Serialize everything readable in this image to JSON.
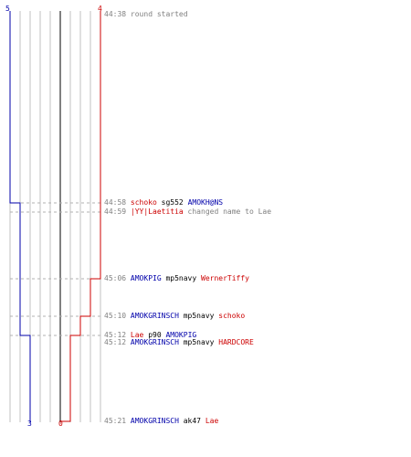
{
  "colors": {
    "blue": "#0000aa",
    "red": "#cc0000",
    "grid": "#c0c0c0",
    "center": "#808080",
    "time": "#808080",
    "dash": "#b0b0b0"
  },
  "scores": {
    "blue_start": "5",
    "red_start": "4",
    "blue_end": "3",
    "red_end": "0"
  },
  "events": [
    {
      "time": "44:38",
      "parts": [
        {
          "text": "round started",
          "color": "gray"
        }
      ]
    },
    {
      "time": "44:58",
      "parts": [
        {
          "text": "schoko",
          "color": "red"
        },
        {
          "text": "sg552",
          "color": "black"
        },
        {
          "text": "AMOKH@NS",
          "color": "blue"
        }
      ]
    },
    {
      "time": "44:59",
      "parts": [
        {
          "text": "|YY|Laetitia",
          "color": "red"
        },
        {
          "text": "changed name to Lae",
          "color": "gray"
        }
      ]
    },
    {
      "time": "45:06",
      "parts": [
        {
          "text": "AMOKPIG",
          "color": "blue"
        },
        {
          "text": "mp5navy",
          "color": "black"
        },
        {
          "text": "WernerTiffy",
          "color": "red"
        }
      ]
    },
    {
      "time": "45:10",
      "parts": [
        {
          "text": "AMOKGRINSCH",
          "color": "blue"
        },
        {
          "text": "mp5navy",
          "color": "black"
        },
        {
          "text": "schoko",
          "color": "red"
        }
      ]
    },
    {
      "time": "45:12",
      "parts": [
        {
          "text": "Lae",
          "color": "red"
        },
        {
          "text": "p90",
          "color": "black"
        },
        {
          "text": "AMOKPIG",
          "color": "blue"
        }
      ]
    },
    {
      "time": "45:12",
      "parts": [
        {
          "text": "AMOKGRINSCH",
          "color": "blue"
        },
        {
          "text": "mp5navy",
          "color": "black"
        },
        {
          "text": "HARDCORE",
          "color": "red"
        }
      ]
    },
    {
      "time": "45:21",
      "parts": [
        {
          "text": "AMOKGRINSCH",
          "color": "blue"
        },
        {
          "text": "ak47",
          "color": "black"
        },
        {
          "text": "Lae",
          "color": "red"
        }
      ]
    }
  ]
}
